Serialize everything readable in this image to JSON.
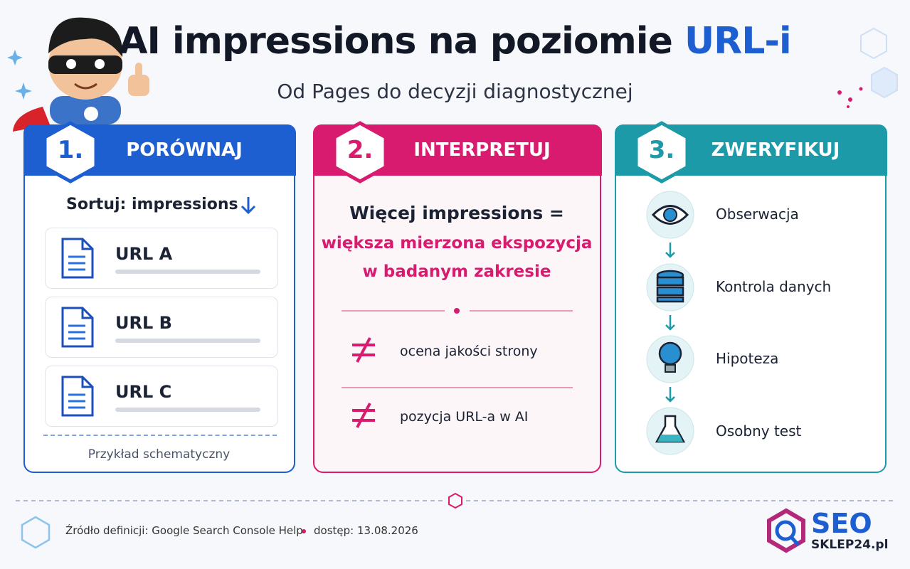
{
  "header": {
    "title": "AI impressions na poziomie ",
    "title_highlight": "URL-i",
    "subtitle": "Od Pages do decyzji diagnostycznej"
  },
  "panels": [
    {
      "number": "1.",
      "heading": "PORÓWNAJ",
      "sort_label": "Sortuj: impressions",
      "items": [
        "URL A",
        "URL B",
        "URL C"
      ],
      "note": "Przykład schematyczny"
    },
    {
      "number": "2.",
      "heading": "INTERPRETUJ",
      "statement": [
        "Więcej impressions =",
        "większa mierzona ekspozycja",
        "w badanym zakresie"
      ],
      "not_equal": [
        "ocena jakości strony",
        "pozycja URL-a w AI"
      ]
    },
    {
      "number": "3.",
      "heading": "ZWERYFIKUJ",
      "steps": [
        "Obserwacja",
        "Kontrola danych",
        "Hipoteza",
        "Osobny test"
      ]
    }
  ],
  "footer": {
    "source": "Źródło definicji: Google Search Console Help",
    "access": "dostęp: 13.08.2026"
  },
  "logo": {
    "brand": "SEO",
    "domain": "SKLEP24.pl"
  }
}
